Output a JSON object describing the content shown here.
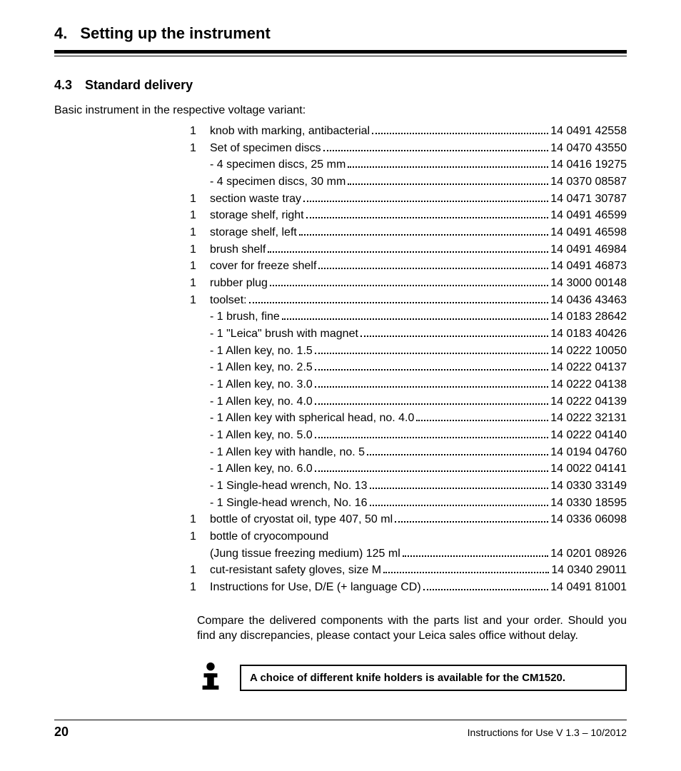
{
  "chapter": {
    "number": "4.",
    "title": "Setting up the instrument"
  },
  "section": {
    "number": "4.3",
    "title": "Standard delivery"
  },
  "intro": "Basic instrument in the respective voltage variant:",
  "items": [
    {
      "qty": "1",
      "desc": "knob with marking, antibacterial",
      "part": "14 0491 42558",
      "indent": 0
    },
    {
      "qty": "1",
      "desc": "Set of specimen discs",
      "part": "14 0470 43550",
      "indent": 0
    },
    {
      "qty": "",
      "desc": "- 4 specimen discs, 25 mm ",
      "part": "14 0416 19275",
      "indent": 0
    },
    {
      "qty": "",
      "desc": "- 4 specimen discs, 30 mm ",
      "part": "14 0370 08587",
      "indent": 0
    },
    {
      "qty": "1",
      "desc": "section waste tray ",
      "part": "14 0471 30787",
      "indent": 0
    },
    {
      "qty": "1",
      "desc": "storage shelf, right ",
      "part": "14 0491 46599",
      "indent": 0
    },
    {
      "qty": "1",
      "desc": "storage shelf, left ",
      "part": "14 0491 46598",
      "indent": 0
    },
    {
      "qty": "1",
      "desc": "brush shelf ",
      "part": "14 0491 46984",
      "indent": 0
    },
    {
      "qty": "1",
      "desc": "cover for freeze shelf",
      "part": "14 0491 46873",
      "indent": 0
    },
    {
      "qty": "1",
      "desc": "rubber plug",
      "part": "14 3000 00148",
      "indent": 0
    },
    {
      "qty": "1",
      "desc": "toolset: ",
      "part": "14 0436 43463",
      "indent": 0
    },
    {
      "qty": "",
      "desc": "- 1 brush, fine",
      "part": "14 0183 28642",
      "indent": 0
    },
    {
      "qty": "",
      "desc": "- 1 \"Leica\" brush with magnet ",
      "part": "14 0183 40426",
      "indent": 0
    },
    {
      "qty": "",
      "desc": "- 1 Allen key, no. 1.5",
      "part": "14 0222 10050",
      "indent": 0
    },
    {
      "qty": "",
      "desc": "- 1 Allen key, no. 2.5",
      "part": "14 0222 04137",
      "indent": 0
    },
    {
      "qty": "",
      "desc": "- 1 Allen key, no. 3.0",
      "part": "14 0222 04138",
      "indent": 0
    },
    {
      "qty": "",
      "desc": "- 1 Allen key, no. 4.0",
      "part": "14 0222 04139",
      "indent": 0
    },
    {
      "qty": "",
      "desc": "- 1 Allen key with spherical head, no. 4.0 ",
      "part": "14 0222 32131",
      "indent": 0
    },
    {
      "qty": "",
      "desc": "- 1 Allen key, no. 5.0",
      "part": "14 0222 04140",
      "indent": 0
    },
    {
      "qty": "",
      "desc": "- 1 Allen key with handle, no. 5 ",
      "part": "14 0194 04760",
      "indent": 0
    },
    {
      "qty": "",
      "desc": "- 1 Allen key, no. 6.0",
      "part": "14 0022 04141",
      "indent": 0
    },
    {
      "qty": "",
      "desc": "- 1 Single-head wrench, No. 13",
      "part": "14 0330 33149",
      "indent": 0
    },
    {
      "qty": "",
      "desc": "- 1 Single-head wrench, No. 16",
      "part": "14 0330 18595",
      "indent": 0
    },
    {
      "qty": "1",
      "desc": "bottle of cryostat oil, type 407, 50 ml ",
      "part": "14 0336 06098",
      "indent": 0
    },
    {
      "qty": "1",
      "desc": "bottle of cryocompound",
      "part": "",
      "indent": 0,
      "nodots": true
    },
    {
      "qty": "",
      "desc": "(Jung tissue freezing medium) 125 ml ",
      "part": "14 0201 08926",
      "indent": 0
    },
    {
      "qty": "1",
      "desc": "cut-resistant safety gloves, size M",
      "part": "14 0340 29011",
      "indent": 0
    },
    {
      "qty": "1",
      "desc": "Instructions for Use, D/E (+ language CD) ",
      "part": "14 0491 81001",
      "indent": 0
    }
  ],
  "note": "Compare the delivered components with the parts list and your order. Should you find any discrepancies, please contact your Leica sales office without delay.",
  "infoBox": "A choice of different knife holders is available for the CM1520.",
  "footer": {
    "page": "20",
    "version": "Instructions for Use V 1.3 – 10/2012"
  }
}
